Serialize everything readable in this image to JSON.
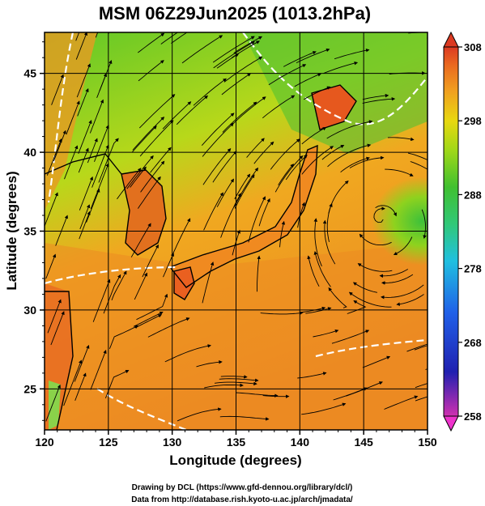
{
  "title": "MSM 06Z29Jun2025 (1013.2hPa)",
  "x_axis": {
    "label": "Longitude (degrees)",
    "ticks": [
      "120",
      "125",
      "130",
      "135",
      "140",
      "145",
      "150"
    ],
    "range": [
      120,
      150
    ]
  },
  "y_axis": {
    "label": "Latitude  (degrees)",
    "ticks": [
      "25",
      "30",
      "35",
      "40",
      "45"
    ],
    "range": [
      22.4,
      47.6
    ]
  },
  "colorbar": {
    "ticks": [
      "308",
      "298",
      "288",
      "278",
      "268",
      "258"
    ],
    "range": [
      258,
      308
    ],
    "colors": [
      "#ee33cc",
      "#2020c0",
      "#1f66ee",
      "#22bbee",
      "#2ed08a",
      "#34c040",
      "#9cd61e",
      "#e2d80e",
      "#f0a020",
      "#ec7020",
      "#de3a22"
    ]
  },
  "credits": {
    "line1": "Drawing by DCL (https://www.gfd-dennou.org/library/dcl/)",
    "line2": "Data from http://database.rish.kyoto-u.ac.jp/arch/jmadata/"
  }
}
